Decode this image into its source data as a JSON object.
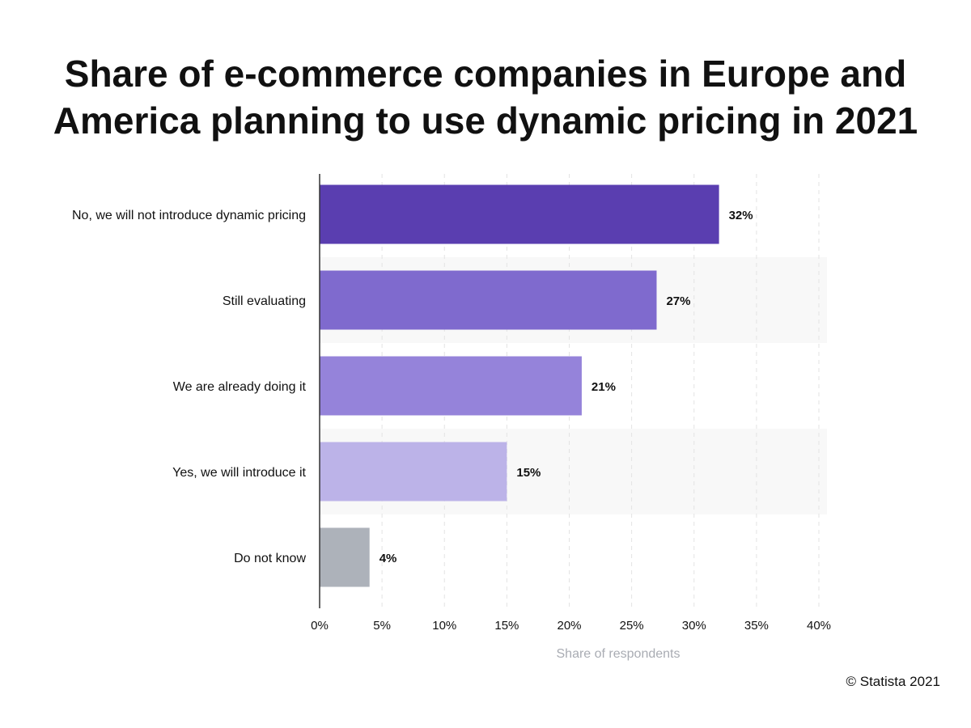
{
  "title_lines": [
    "Share of e-commerce companies in Europe and",
    "America planning to use dynamic pricing in 2021"
  ],
  "chart_data": {
    "type": "bar",
    "orientation": "horizontal",
    "categories": [
      "No, we will not introduce dynamic pricing",
      "Still evaluating",
      "We are already doing it",
      "Yes, we will introduce it",
      "Do not know"
    ],
    "values": [
      32,
      27,
      21,
      15,
      4
    ],
    "value_labels": [
      "32%",
      "27%",
      "21%",
      "15%",
      "4%"
    ],
    "bar_colors": [
      "#5a3eb0",
      "#7f6ace",
      "#9583da",
      "#bcb3e8",
      "#adb2ba"
    ],
    "xlabel": "Share of respondents",
    "xlim": [
      0,
      40
    ],
    "xticks": [
      "0%",
      "5%",
      "10%",
      "15%",
      "20%",
      "25%",
      "30%",
      "35%",
      "40%"
    ],
    "grid": true
  },
  "credit": "© Statista 2021"
}
